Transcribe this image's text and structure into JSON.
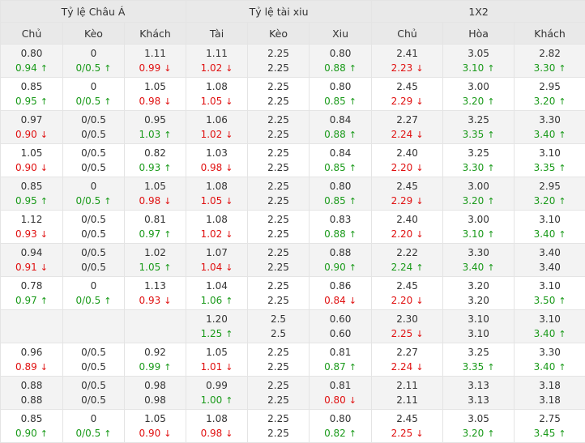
{
  "groups": [
    {
      "label": "Tỷ lệ Châu Á",
      "span": 3
    },
    {
      "label": "Tỷ lệ tài xiu",
      "span": 3
    },
    {
      "label": "1X2",
      "span": 3
    }
  ],
  "columns": [
    "Chủ",
    "Kèo",
    "Khách",
    "Tài",
    "Kèo",
    "Xiu",
    "Chủ",
    "Hòa",
    "Khách"
  ],
  "colors": {
    "up": "#1a9a1a",
    "down": "#e01010",
    "header_bg": "#e9e9e9",
    "alt_row_bg": "#f3f3f3"
  },
  "rows": [
    [
      [
        "0.80",
        "0.94",
        "up"
      ],
      [
        "0",
        "0/0.5",
        "up"
      ],
      [
        "1.11",
        "0.99",
        "down"
      ],
      [
        "1.11",
        "1.02",
        "down"
      ],
      [
        "2.25",
        "2.25",
        "none"
      ],
      [
        "0.80",
        "0.88",
        "up"
      ],
      [
        "2.41",
        "2.23",
        "down"
      ],
      [
        "3.05",
        "3.10",
        "up"
      ],
      [
        "2.82",
        "3.30",
        "up"
      ]
    ],
    [
      [
        "0.85",
        "0.95",
        "up"
      ],
      [
        "0",
        "0/0.5",
        "up"
      ],
      [
        "1.05",
        "0.98",
        "down"
      ],
      [
        "1.08",
        "1.05",
        "down"
      ],
      [
        "2.25",
        "2.25",
        "none"
      ],
      [
        "0.80",
        "0.85",
        "up"
      ],
      [
        "2.45",
        "2.29",
        "down"
      ],
      [
        "3.00",
        "3.20",
        "up"
      ],
      [
        "2.95",
        "3.20",
        "up"
      ]
    ],
    [
      [
        "0.97",
        "0.90",
        "down"
      ],
      [
        "0/0.5",
        "0/0.5",
        "none"
      ],
      [
        "0.95",
        "1.03",
        "up"
      ],
      [
        "1.06",
        "1.02",
        "down"
      ],
      [
        "2.25",
        "2.25",
        "none"
      ],
      [
        "0.84",
        "0.88",
        "up"
      ],
      [
        "2.27",
        "2.24",
        "down"
      ],
      [
        "3.25",
        "3.35",
        "up"
      ],
      [
        "3.30",
        "3.40",
        "up"
      ]
    ],
    [
      [
        "1.05",
        "0.90",
        "down"
      ],
      [
        "0/0.5",
        "0/0.5",
        "none"
      ],
      [
        "0.82",
        "0.93",
        "up"
      ],
      [
        "1.03",
        "0.98",
        "down"
      ],
      [
        "2.25",
        "2.25",
        "none"
      ],
      [
        "0.84",
        "0.85",
        "up"
      ],
      [
        "2.40",
        "2.20",
        "down"
      ],
      [
        "3.25",
        "3.30",
        "up"
      ],
      [
        "3.10",
        "3.35",
        "up"
      ]
    ],
    [
      [
        "0.85",
        "0.95",
        "up"
      ],
      [
        "0",
        "0/0.5",
        "up"
      ],
      [
        "1.05",
        "0.98",
        "down"
      ],
      [
        "1.08",
        "1.05",
        "down"
      ],
      [
        "2.25",
        "2.25",
        "none"
      ],
      [
        "0.80",
        "0.85",
        "up"
      ],
      [
        "2.45",
        "2.29",
        "down"
      ],
      [
        "3.00",
        "3.20",
        "up"
      ],
      [
        "2.95",
        "3.20",
        "up"
      ]
    ],
    [
      [
        "1.12",
        "0.93",
        "down"
      ],
      [
        "0/0.5",
        "0/0.5",
        "none"
      ],
      [
        "0.81",
        "0.97",
        "up"
      ],
      [
        "1.08",
        "1.02",
        "down"
      ],
      [
        "2.25",
        "2.25",
        "none"
      ],
      [
        "0.83",
        "0.88",
        "up"
      ],
      [
        "2.40",
        "2.20",
        "down"
      ],
      [
        "3.00",
        "3.10",
        "up"
      ],
      [
        "3.10",
        "3.40",
        "up"
      ]
    ],
    [
      [
        "0.94",
        "0.91",
        "down"
      ],
      [
        "0/0.5",
        "0/0.5",
        "none"
      ],
      [
        "1.02",
        "1.05",
        "up"
      ],
      [
        "1.07",
        "1.04",
        "down"
      ],
      [
        "2.25",
        "2.25",
        "none"
      ],
      [
        "0.88",
        "0.90",
        "up"
      ],
      [
        "2.22",
        "2.24",
        "up"
      ],
      [
        "3.30",
        "3.40",
        "up"
      ],
      [
        "3.40",
        "3.40",
        "none"
      ]
    ],
    [
      [
        "0.78",
        "0.97",
        "up"
      ],
      [
        "0",
        "0/0.5",
        "up"
      ],
      [
        "1.13",
        "0.93",
        "down"
      ],
      [
        "1.04",
        "1.06",
        "up"
      ],
      [
        "2.25",
        "2.25",
        "none"
      ],
      [
        "0.86",
        "0.84",
        "down"
      ],
      [
        "2.45",
        "2.20",
        "down"
      ],
      [
        "3.20",
        "3.20",
        "none"
      ],
      [
        "3.10",
        "3.50",
        "up"
      ]
    ],
    [
      [
        "",
        "",
        "none"
      ],
      [
        "",
        "",
        "none"
      ],
      [
        "",
        "",
        "none"
      ],
      [
        "1.20",
        "1.25",
        "up"
      ],
      [
        "2.5",
        "2.5",
        "none"
      ],
      [
        "0.60",
        "0.60",
        "none"
      ],
      [
        "2.30",
        "2.25",
        "down"
      ],
      [
        "3.10",
        "3.10",
        "none"
      ],
      [
        "3.10",
        "3.40",
        "up"
      ]
    ],
    [
      [
        "0.96",
        "0.89",
        "down"
      ],
      [
        "0/0.5",
        "0/0.5",
        "none"
      ],
      [
        "0.92",
        "0.99",
        "up"
      ],
      [
        "1.05",
        "1.01",
        "down"
      ],
      [
        "2.25",
        "2.25",
        "none"
      ],
      [
        "0.81",
        "0.87",
        "up"
      ],
      [
        "2.27",
        "2.24",
        "down"
      ],
      [
        "3.25",
        "3.35",
        "up"
      ],
      [
        "3.30",
        "3.40",
        "up"
      ]
    ],
    [
      [
        "0.88",
        "0.88",
        "none"
      ],
      [
        "0/0.5",
        "0/0.5",
        "none"
      ],
      [
        "0.98",
        "0.98",
        "none"
      ],
      [
        "0.99",
        "1.00",
        "up"
      ],
      [
        "2.25",
        "2.25",
        "none"
      ],
      [
        "0.81",
        "0.80",
        "down"
      ],
      [
        "2.11",
        "2.11",
        "none"
      ],
      [
        "3.13",
        "3.13",
        "none"
      ],
      [
        "3.18",
        "3.18",
        "none"
      ]
    ],
    [
      [
        "0.85",
        "0.90",
        "up"
      ],
      [
        "0",
        "0/0.5",
        "up"
      ],
      [
        "1.05",
        "0.90",
        "down"
      ],
      [
        "1.08",
        "0.98",
        "down"
      ],
      [
        "2.25",
        "2.25",
        "none"
      ],
      [
        "0.80",
        "0.82",
        "up"
      ],
      [
        "2.45",
        "2.25",
        "down"
      ],
      [
        "3.05",
        "3.20",
        "up"
      ],
      [
        "2.75",
        "3.45",
        "up"
      ]
    ]
  ]
}
